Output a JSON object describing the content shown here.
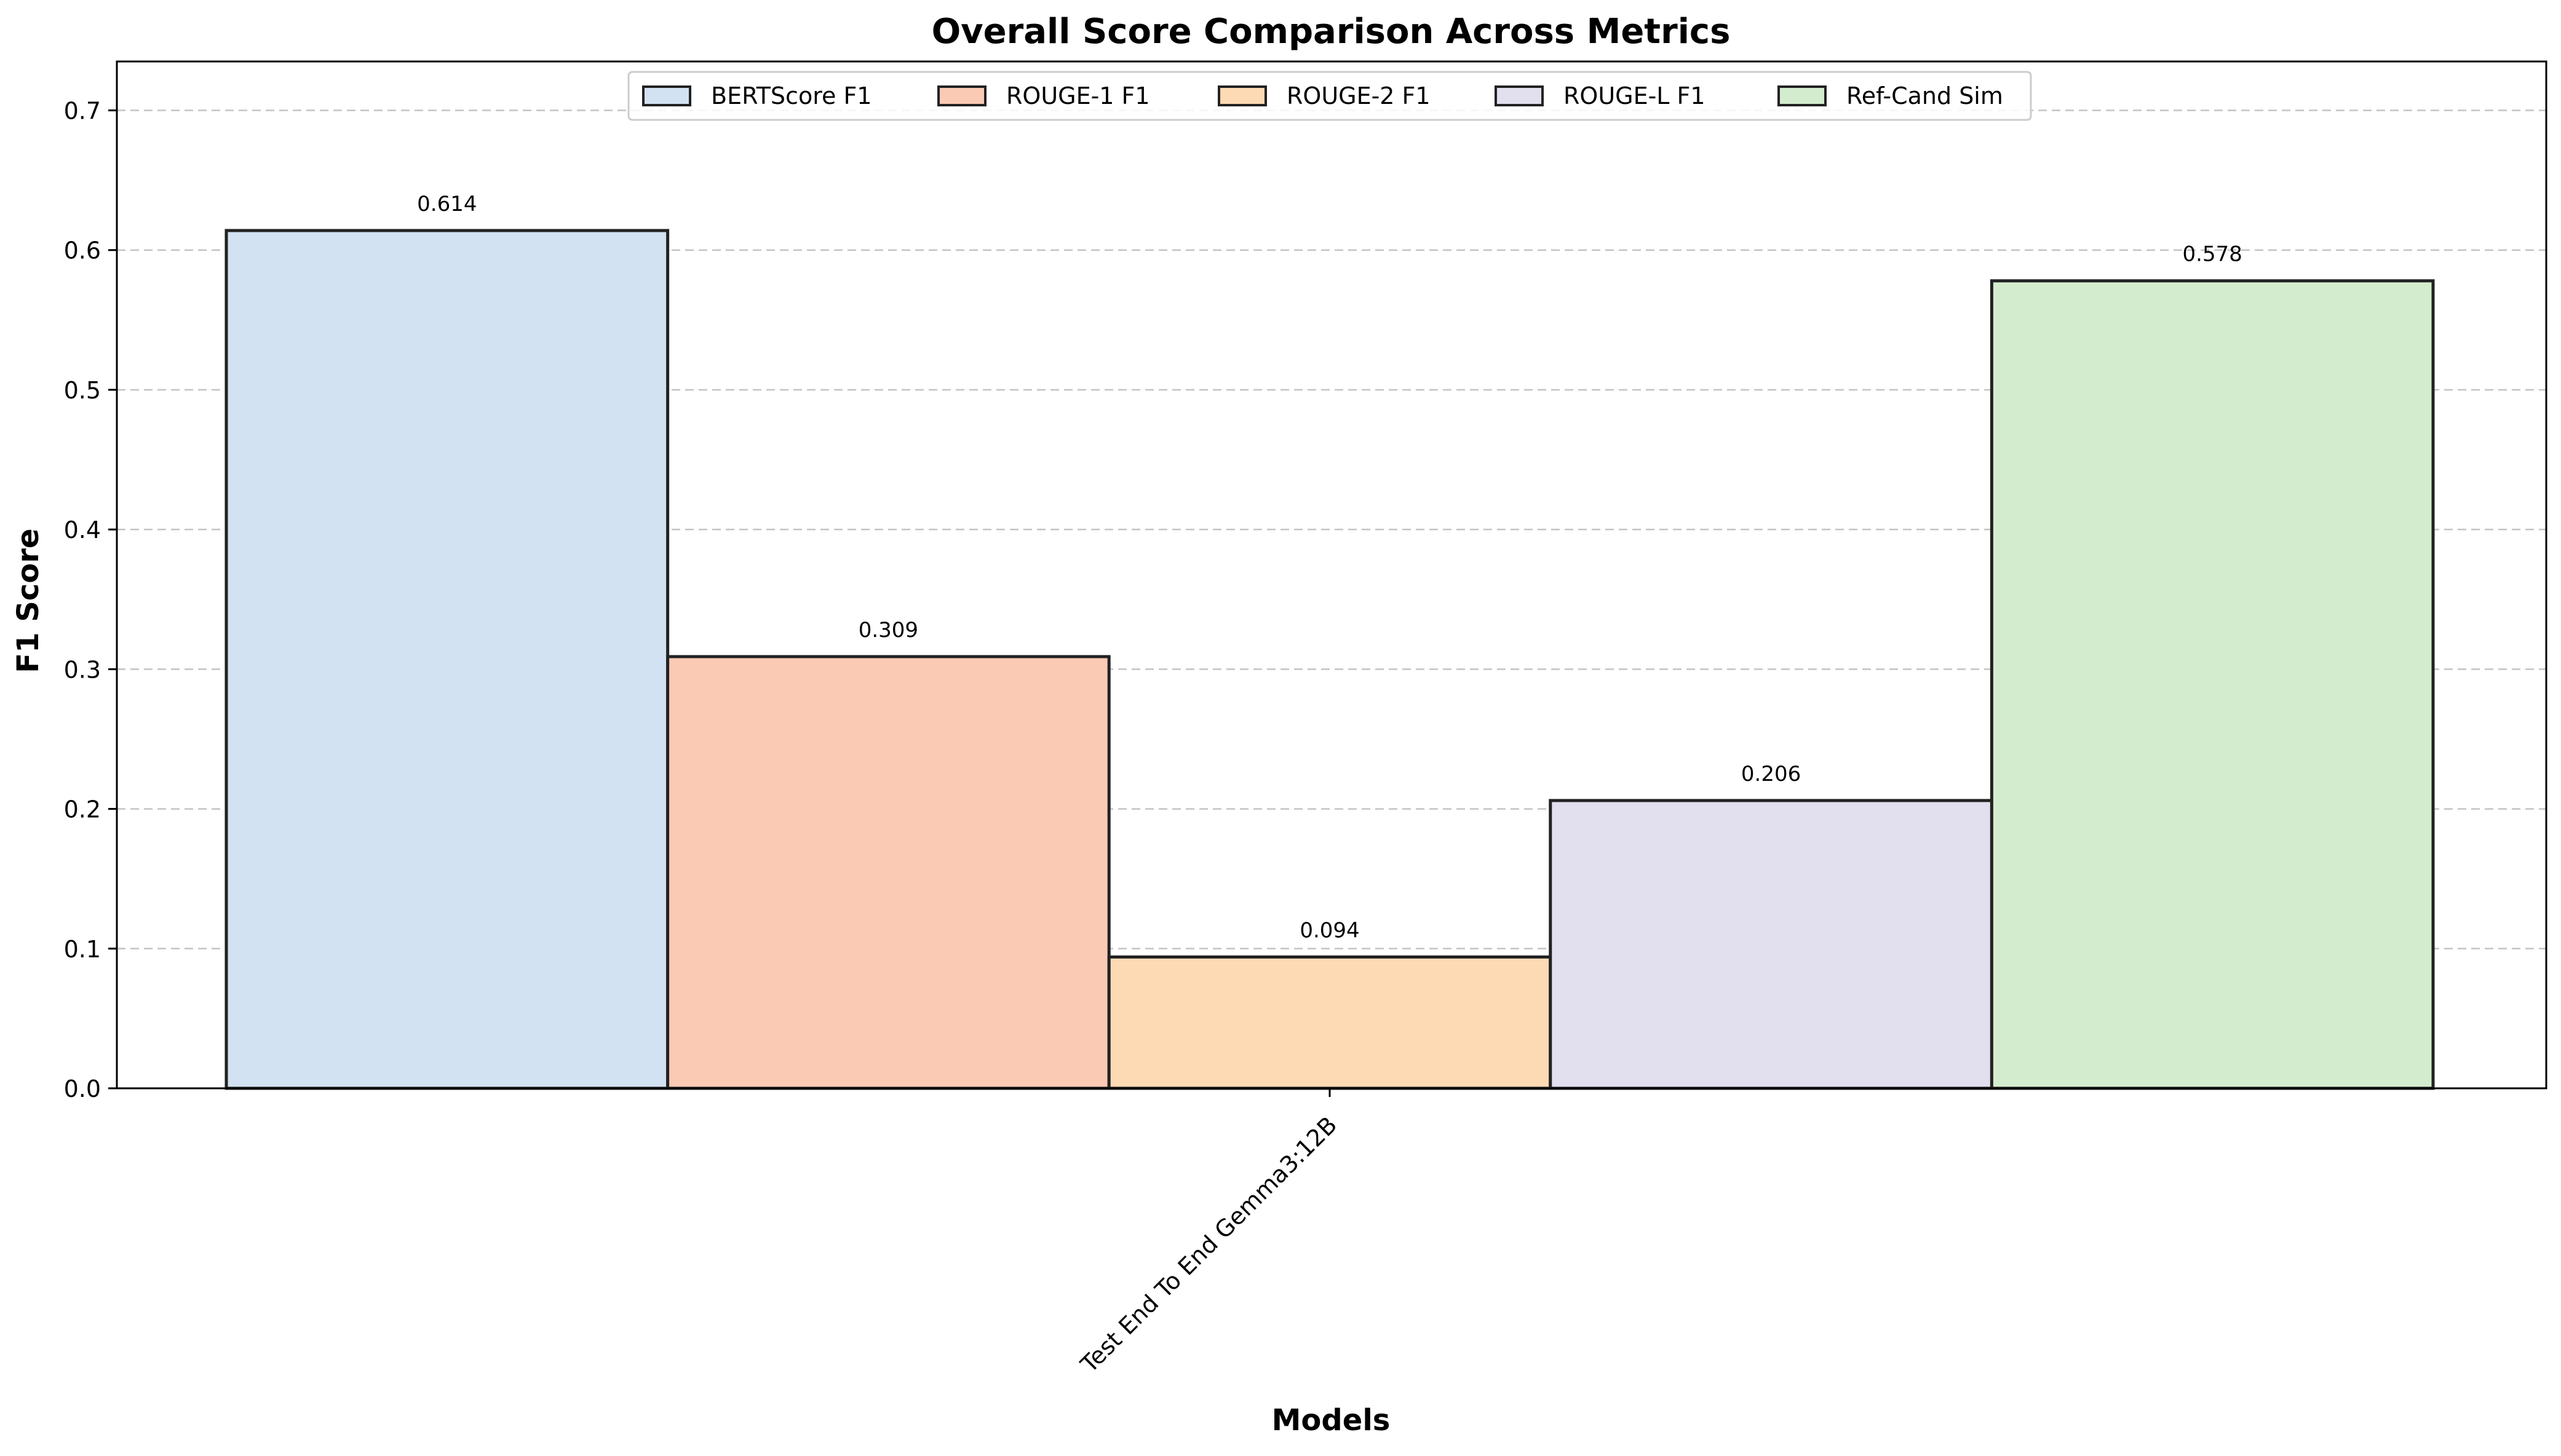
{
  "chart_data": {
    "type": "bar",
    "title": "Overall Score Comparison Across Metrics",
    "xlabel": "Models",
    "ylabel": "F1 Score",
    "categories": [
      "Test End To End Gemma3:12B"
    ],
    "ylim": [
      0,
      0.735
    ],
    "yticks": [
      "0.0",
      "0.1",
      "0.2",
      "0.3",
      "0.4",
      "0.5",
      "0.6",
      "0.7"
    ],
    "grid": "y-dashed",
    "legend_placement": "top-center",
    "series": [
      {
        "name": "BERTScore F1",
        "values": [
          0.614
        ],
        "label": "0.614",
        "color": "#d2e2f2"
      },
      {
        "name": "ROUGE-1 F1",
        "values": [
          0.309
        ],
        "label": "0.309",
        "color": "#fbcab5"
      },
      {
        "name": "ROUGE-2 F1",
        "values": [
          0.094
        ],
        "label": "0.094",
        "color": "#fdd9b4"
      },
      {
        "name": "ROUGE-L F1",
        "values": [
          0.206
        ],
        "label": "0.206",
        "color": "#e2e0ef"
      },
      {
        "name": "Ref-Cand Sim",
        "values": [
          0.578
        ],
        "label": "0.578",
        "color": "#d4ecce"
      }
    ]
  }
}
